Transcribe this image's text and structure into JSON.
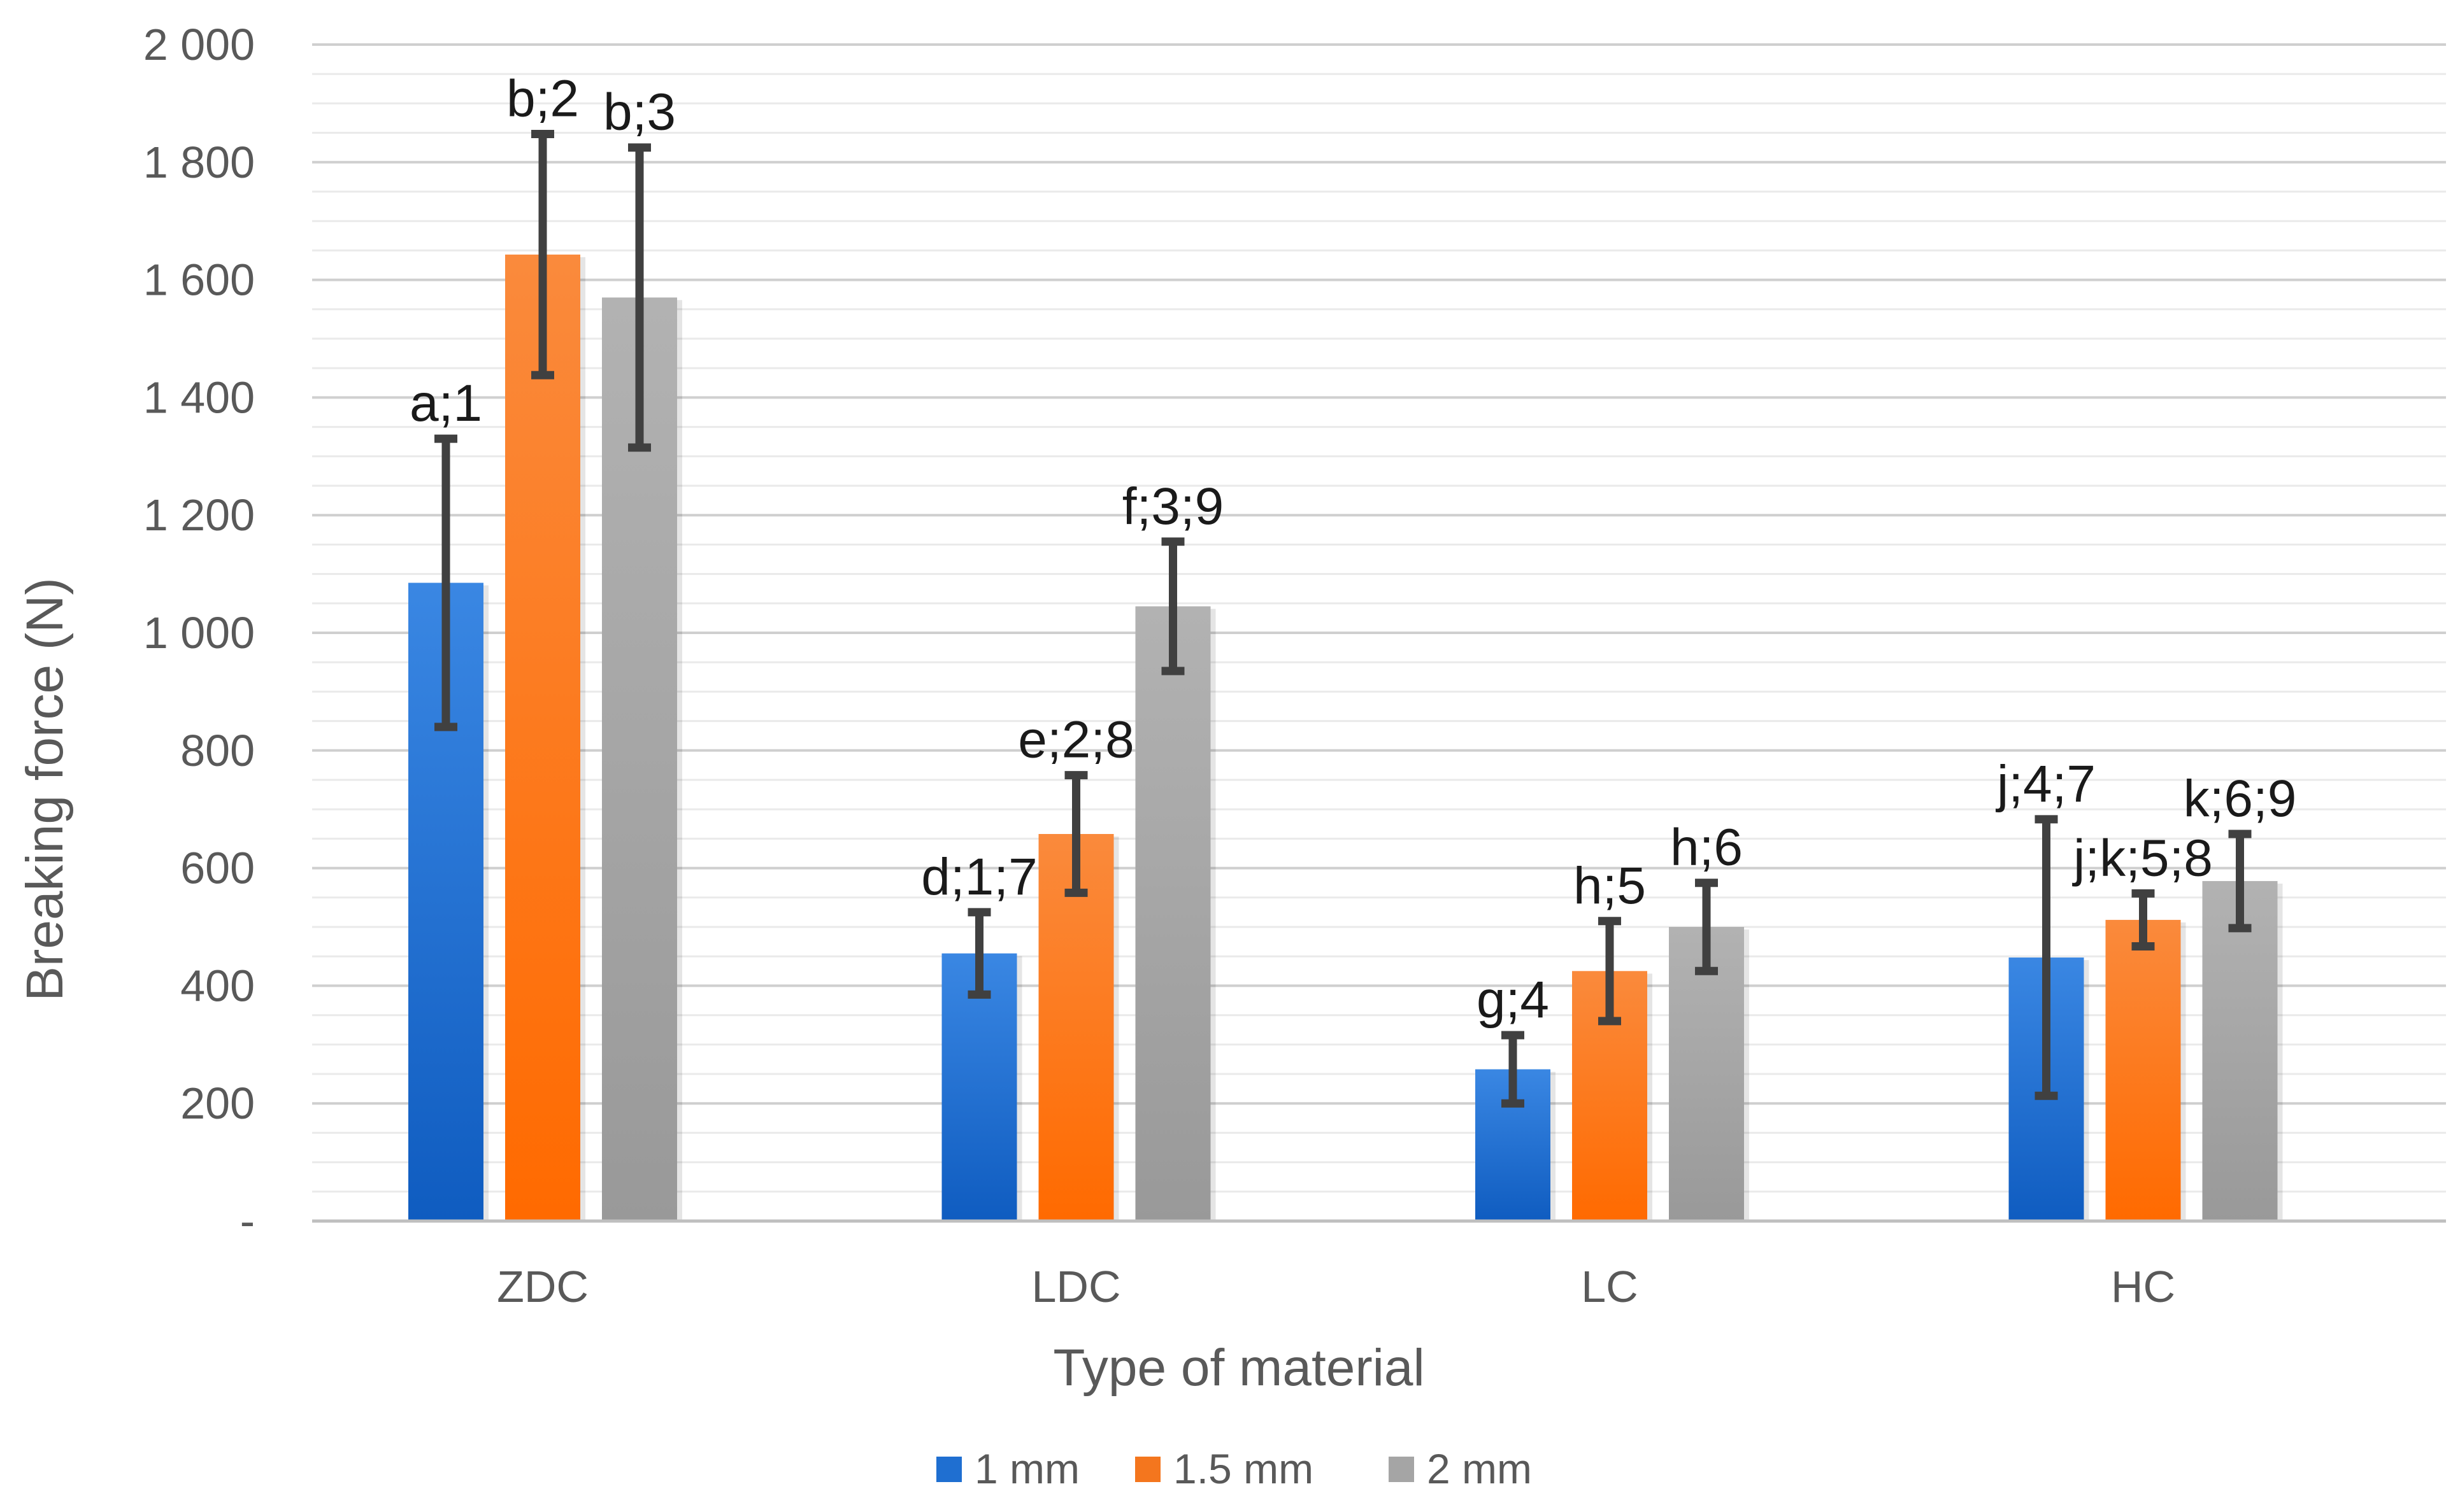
{
  "chart_data": {
    "type": "bar",
    "title": "",
    "xlabel": "Type of material",
    "ylabel": "Breaking force (N)",
    "ylim": [
      0,
      2000
    ],
    "yticks": [
      0,
      200,
      400,
      600,
      800,
      1000,
      1200,
      1400,
      1600,
      1800,
      2000
    ],
    "ytick_labels": [
      "-",
      "200",
      "400",
      "600",
      "800",
      "1 000",
      "1 200",
      "1 400",
      "1 600",
      "1 800",
      "2 000"
    ],
    "grid": true,
    "legend_position": "bottom",
    "categories": [
      "ZDC",
      "LDC",
      "LC",
      "HC"
    ],
    "series": [
      {
        "name": "1 mm",
        "color": "#1F6FD1",
        "values": [
          1085,
          455,
          258,
          448
        ],
        "errors": [
          245,
          70,
          58,
          235
        ],
        "labels": [
          "a;1",
          "d;1;7",
          "g;4",
          "j;4;7"
        ]
      },
      {
        "name": "1.5 mm",
        "color": "#F4761E",
        "values": [
          1643,
          658,
          425,
          512
        ],
        "errors": [
          205,
          100,
          85,
          45
        ],
        "labels": [
          "b;2",
          "e;2;8",
          "h;5",
          "j;k;5;8"
        ]
      },
      {
        "name": "2 mm",
        "color": "#A5A5A5",
        "values": [
          1570,
          1045,
          500,
          578
        ],
        "errors": [
          255,
          110,
          75,
          80
        ],
        "labels": [
          "b;3",
          "f;3;9",
          "h;6",
          "k;6;9"
        ]
      }
    ]
  }
}
